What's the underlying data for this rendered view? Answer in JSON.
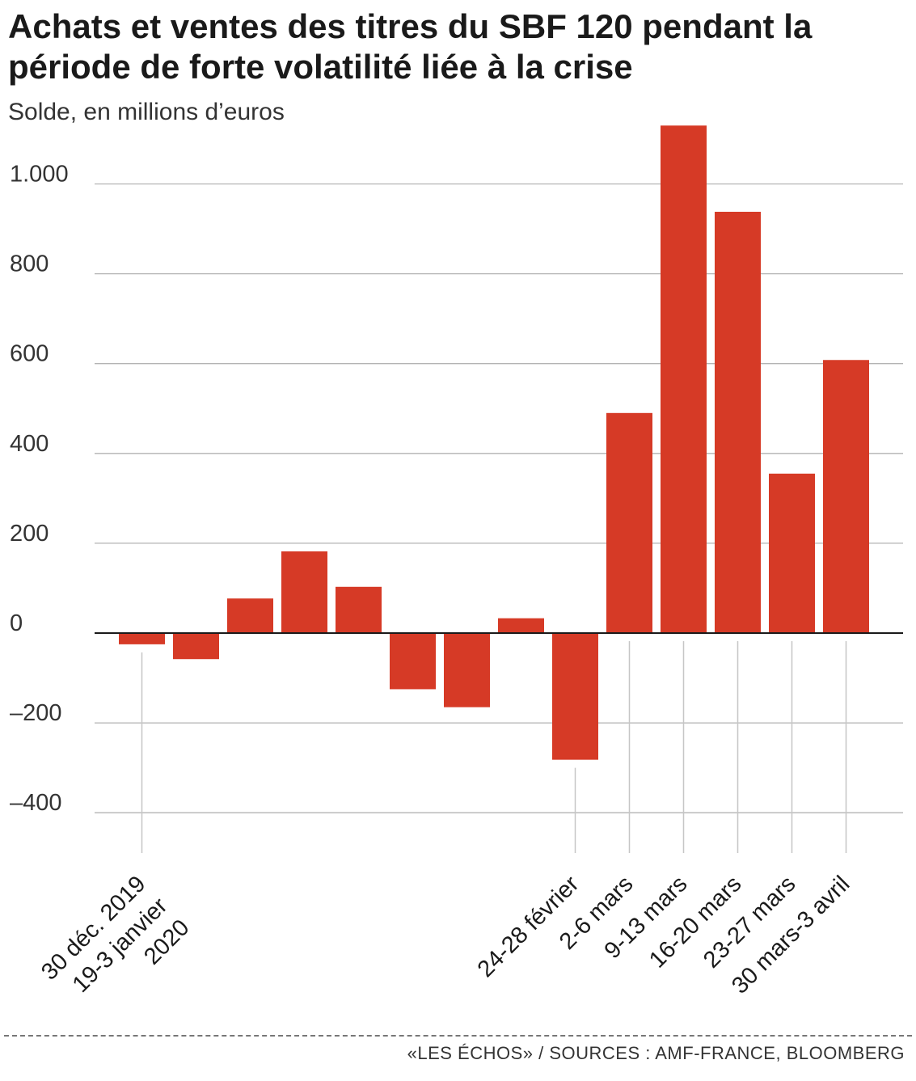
{
  "header": {
    "title": "Achats et ventes des titres du SBF 120 pendant la période de forte volatilité liée à la crise",
    "subtitle": "Solde, en millions d’euros"
  },
  "footer": {
    "source": "«LES ÉCHOS» / SOURCES : AMF-FRANCE, BLOOMBERG"
  },
  "colors": {
    "bar": "#d63a26",
    "grid": "#b3b3b3",
    "zero_line": "#1a1a1a",
    "leader": "#c6c6c6"
  },
  "chart_data": {
    "type": "bar",
    "title": "Achats et ventes des titres du SBF 120 pendant la période de forte volatilité liée à la crise",
    "ylabel": "Solde, en millions d’euros",
    "xlabel": "",
    "ylim": [
      -400,
      1120
    ],
    "yticks": [
      {
        "value": -400,
        "label": "–400"
      },
      {
        "value": -200,
        "label": "–200"
      },
      {
        "value": 0,
        "label": "0"
      },
      {
        "value": 200,
        "label": "200"
      },
      {
        "value": 400,
        "label": "400"
      },
      {
        "value": 600,
        "label": "600"
      },
      {
        "value": 800,
        "label": "800"
      },
      {
        "value": 1000,
        "label": "1.000"
      }
    ],
    "grid": true,
    "legend": "none",
    "bars": [
      {
        "label": "30 déc. 2019",
        "value": -25
      },
      {
        "label": "",
        "value": -58
      },
      {
        "label": "",
        "value": 77
      },
      {
        "label": "",
        "value": 182
      },
      {
        "label": "",
        "value": 103
      },
      {
        "label": "",
        "value": -125
      },
      {
        "label": "",
        "value": -165
      },
      {
        "label": "",
        "value": 33
      },
      {
        "label": "24-28 février",
        "value": -282
      },
      {
        "label": "2-6 mars",
        "value": 490
      },
      {
        "label": "9-13 mars",
        "value": 1130
      },
      {
        "label": "16-20 mars",
        "value": 938
      },
      {
        "label": "23-27 mars",
        "value": 355
      },
      {
        "label": "30 mars-3 avril",
        "value": 608
      }
    ],
    "annotations": [
      {
        "bar": 0,
        "text": "30 déc. 2019"
      },
      {
        "bar": 0,
        "text": "19-3 janvier"
      },
      {
        "bar": 0,
        "text": "2020"
      }
    ]
  }
}
